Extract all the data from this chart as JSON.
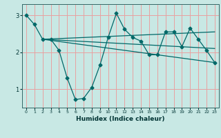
{
  "xlabel": "Humidex (Indice chaleur)",
  "bg_color": "#c8e8e4",
  "line_color": "#006868",
  "grid_color": "#e8a0a0",
  "xlim": [
    -0.5,
    23.5
  ],
  "ylim": [
    0.5,
    3.3
  ],
  "yticks": [
    1,
    2,
    3
  ],
  "xticks": [
    0,
    1,
    2,
    3,
    4,
    5,
    6,
    7,
    8,
    9,
    10,
    11,
    12,
    13,
    14,
    15,
    16,
    17,
    18,
    19,
    20,
    21,
    22,
    23
  ],
  "line1_x": [
    0,
    1,
    2,
    3,
    4,
    5,
    6,
    7,
    8,
    9,
    10,
    11,
    12,
    13,
    14,
    15,
    16,
    17,
    18,
    19,
    20,
    21,
    22,
    23
  ],
  "line1_y": [
    3.0,
    2.75,
    2.35,
    2.35,
    2.05,
    1.3,
    0.72,
    0.75,
    1.05,
    1.65,
    2.4,
    3.05,
    2.62,
    2.4,
    2.3,
    1.93,
    1.93,
    2.55,
    2.55,
    2.15,
    2.65,
    2.35,
    2.05,
    1.72
  ],
  "line2_x": [
    2,
    23
  ],
  "line2_y": [
    2.35,
    2.55
  ],
  "line3_x": [
    2,
    23
  ],
  "line3_y": [
    2.35,
    2.1
  ],
  "line4_x": [
    2,
    23
  ],
  "line4_y": [
    2.35,
    1.72
  ]
}
